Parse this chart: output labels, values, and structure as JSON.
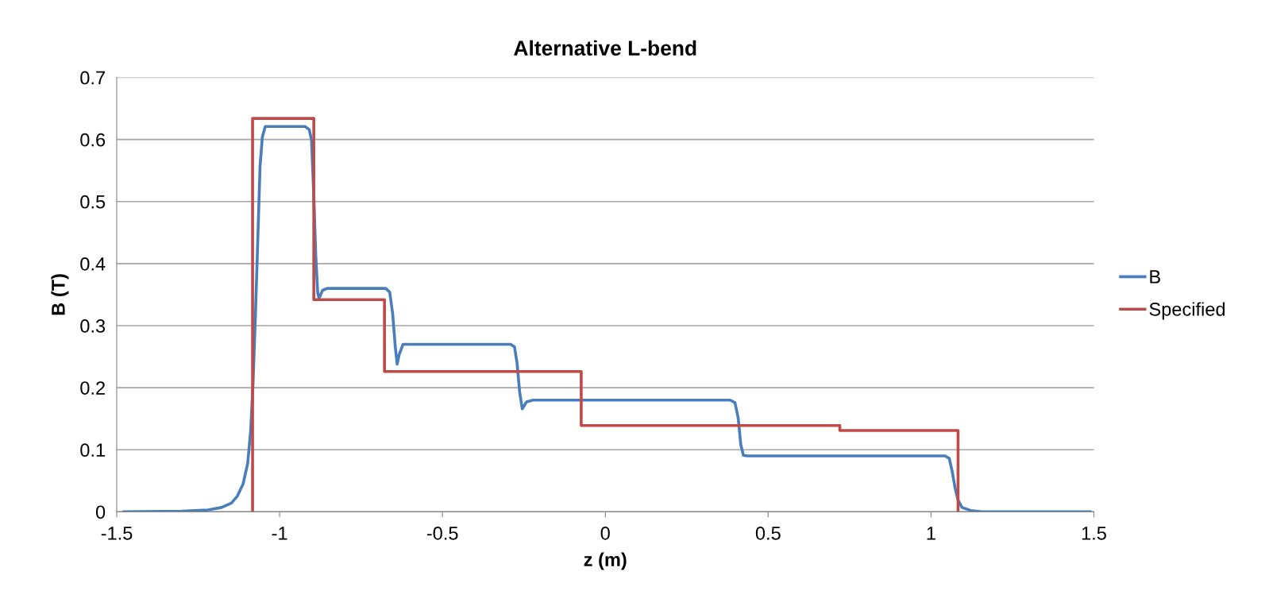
{
  "chart_data": {
    "type": "line",
    "title": "Alternative L-bend",
    "xlabel": "z (m)",
    "ylabel": "B (T)",
    "xlim": [
      -1.5,
      1.5
    ],
    "xticks": [
      -1.5,
      -1,
      -0.5,
      0,
      0.5,
      1,
      1.5
    ],
    "ylim": [
      0,
      0.7
    ],
    "yticks": [
      0,
      0.1,
      0.2,
      0.3,
      0.4,
      0.5,
      0.6,
      0.7
    ],
    "grid": "y",
    "legend": "right",
    "marker": "none",
    "line_style": "solid",
    "series": [
      {
        "name": "B",
        "color": "#4a7ebb",
        "x": [
          -1.48,
          -1.3,
          -1.22,
          -1.178,
          -1.148,
          -1.13,
          -1.112,
          -1.098,
          -1.089,
          -1.082,
          -1.074,
          -1.067,
          -1.06,
          -1.053,
          -1.044,
          -0.922,
          -0.909,
          -0.902,
          -0.895,
          -0.889,
          -0.883,
          -0.879,
          -0.868,
          -0.854,
          -0.674,
          -0.662,
          -0.653,
          -0.645,
          -0.639,
          -0.633,
          -0.621,
          -0.291,
          -0.279,
          -0.271,
          -0.263,
          -0.255,
          -0.242,
          -0.222,
          0.383,
          0.398,
          0.408,
          0.416,
          0.424,
          0.436,
          1.043,
          1.056,
          1.065,
          1.074,
          1.083,
          1.095,
          1.122,
          1.156,
          1.49
        ],
        "values": [
          0,
          0.001,
          0.003,
          0.007,
          0.014,
          0.025,
          0.045,
          0.078,
          0.13,
          0.201,
          0.32,
          0.438,
          0.557,
          0.604,
          0.621,
          0.621,
          0.616,
          0.599,
          0.509,
          0.414,
          0.353,
          0.344,
          0.357,
          0.36,
          0.36,
          0.354,
          0.32,
          0.267,
          0.238,
          0.253,
          0.27,
          0.27,
          0.266,
          0.24,
          0.193,
          0.166,
          0.177,
          0.18,
          0.18,
          0.176,
          0.151,
          0.108,
          0.091,
          0.09,
          0.09,
          0.086,
          0.065,
          0.038,
          0.019,
          0.007,
          0.002,
          0,
          0
        ]
      },
      {
        "name": "Specified",
        "color": "#be4b48",
        "x": [
          -1.083,
          -1.083,
          -0.895,
          -0.895,
          -0.678,
          -0.678,
          -0.074,
          -0.074,
          0.72,
          0.72,
          1.083,
          1.083
        ],
        "values": [
          0,
          0.634,
          0.634,
          0.342,
          0.342,
          0.226,
          0.226,
          0.139,
          0.139,
          0.131,
          0.131,
          0
        ]
      }
    ]
  }
}
